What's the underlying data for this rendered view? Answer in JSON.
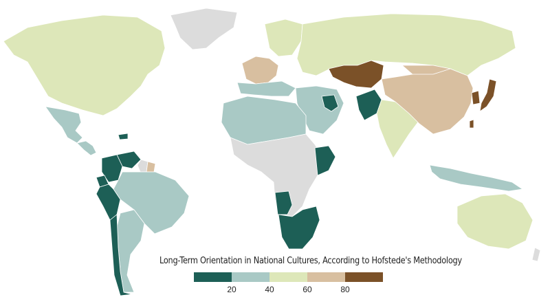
{
  "title": "Long-Term Orientation in National Cultures, According to Hofstede's Methodology",
  "colors": {
    "ocean": "#ffffff",
    "no_data": "#dcdcdc",
    "border": "#ffffff",
    "scale": [
      "#1d5f56",
      "#a9c9c5",
      "#dde7b9",
      "#d8bfa0",
      "#7b5128"
    ]
  },
  "legend": {
    "ticks": [
      "20",
      "40",
      "60",
      "80"
    ]
  },
  "regions": [
    {
      "name": "North America",
      "bin": 2
    },
    {
      "name": "Mexico",
      "bin": 1
    },
    {
      "name": "Central America",
      "bin": 1
    },
    {
      "name": "Caribbean",
      "bin": 0
    },
    {
      "name": "Colombia",
      "bin": 0
    },
    {
      "name": "Venezuela",
      "bin": 0
    },
    {
      "name": "Ecuador",
      "bin": 0
    },
    {
      "name": "Peru",
      "bin": 0
    },
    {
      "name": "Chile",
      "bin": 0
    },
    {
      "name": "Brazil",
      "bin": 1
    },
    {
      "name": "Argentina",
      "bin": 1
    },
    {
      "name": "Guyana",
      "bin": -1
    },
    {
      "name": "Suriname",
      "bin": 3
    },
    {
      "name": "Greenland",
      "bin": -1
    },
    {
      "name": "Western Europe",
      "bin": 3
    },
    {
      "name": "Northern Europe",
      "bin": 2
    },
    {
      "name": "Southern Europe",
      "bin": 1
    },
    {
      "name": "Russia",
      "bin": 2
    },
    {
      "name": "Kazakhstan",
      "bin": 4
    },
    {
      "name": "China",
      "bin": 3
    },
    {
      "name": "Mongolia",
      "bin": 3
    },
    {
      "name": "Japan",
      "bin": 4
    },
    {
      "name": "Korea",
      "bin": 4
    },
    {
      "name": "Taiwan",
      "bin": 4
    },
    {
      "name": "India",
      "bin": 2
    },
    {
      "name": "Pakistan",
      "bin": 0
    },
    {
      "name": "Iraq",
      "bin": 0
    },
    {
      "name": "Middle East",
      "bin": 1
    },
    {
      "name": "North Africa",
      "bin": 1
    },
    {
      "name": "Nigeria",
      "bin": 0
    },
    {
      "name": "Ethiopia",
      "bin": 0
    },
    {
      "name": "Angola",
      "bin": 0
    },
    {
      "name": "Southern Africa",
      "bin": 0
    },
    {
      "name": "Indonesia",
      "bin": 1
    },
    {
      "name": "Australia",
      "bin": 2
    }
  ]
}
